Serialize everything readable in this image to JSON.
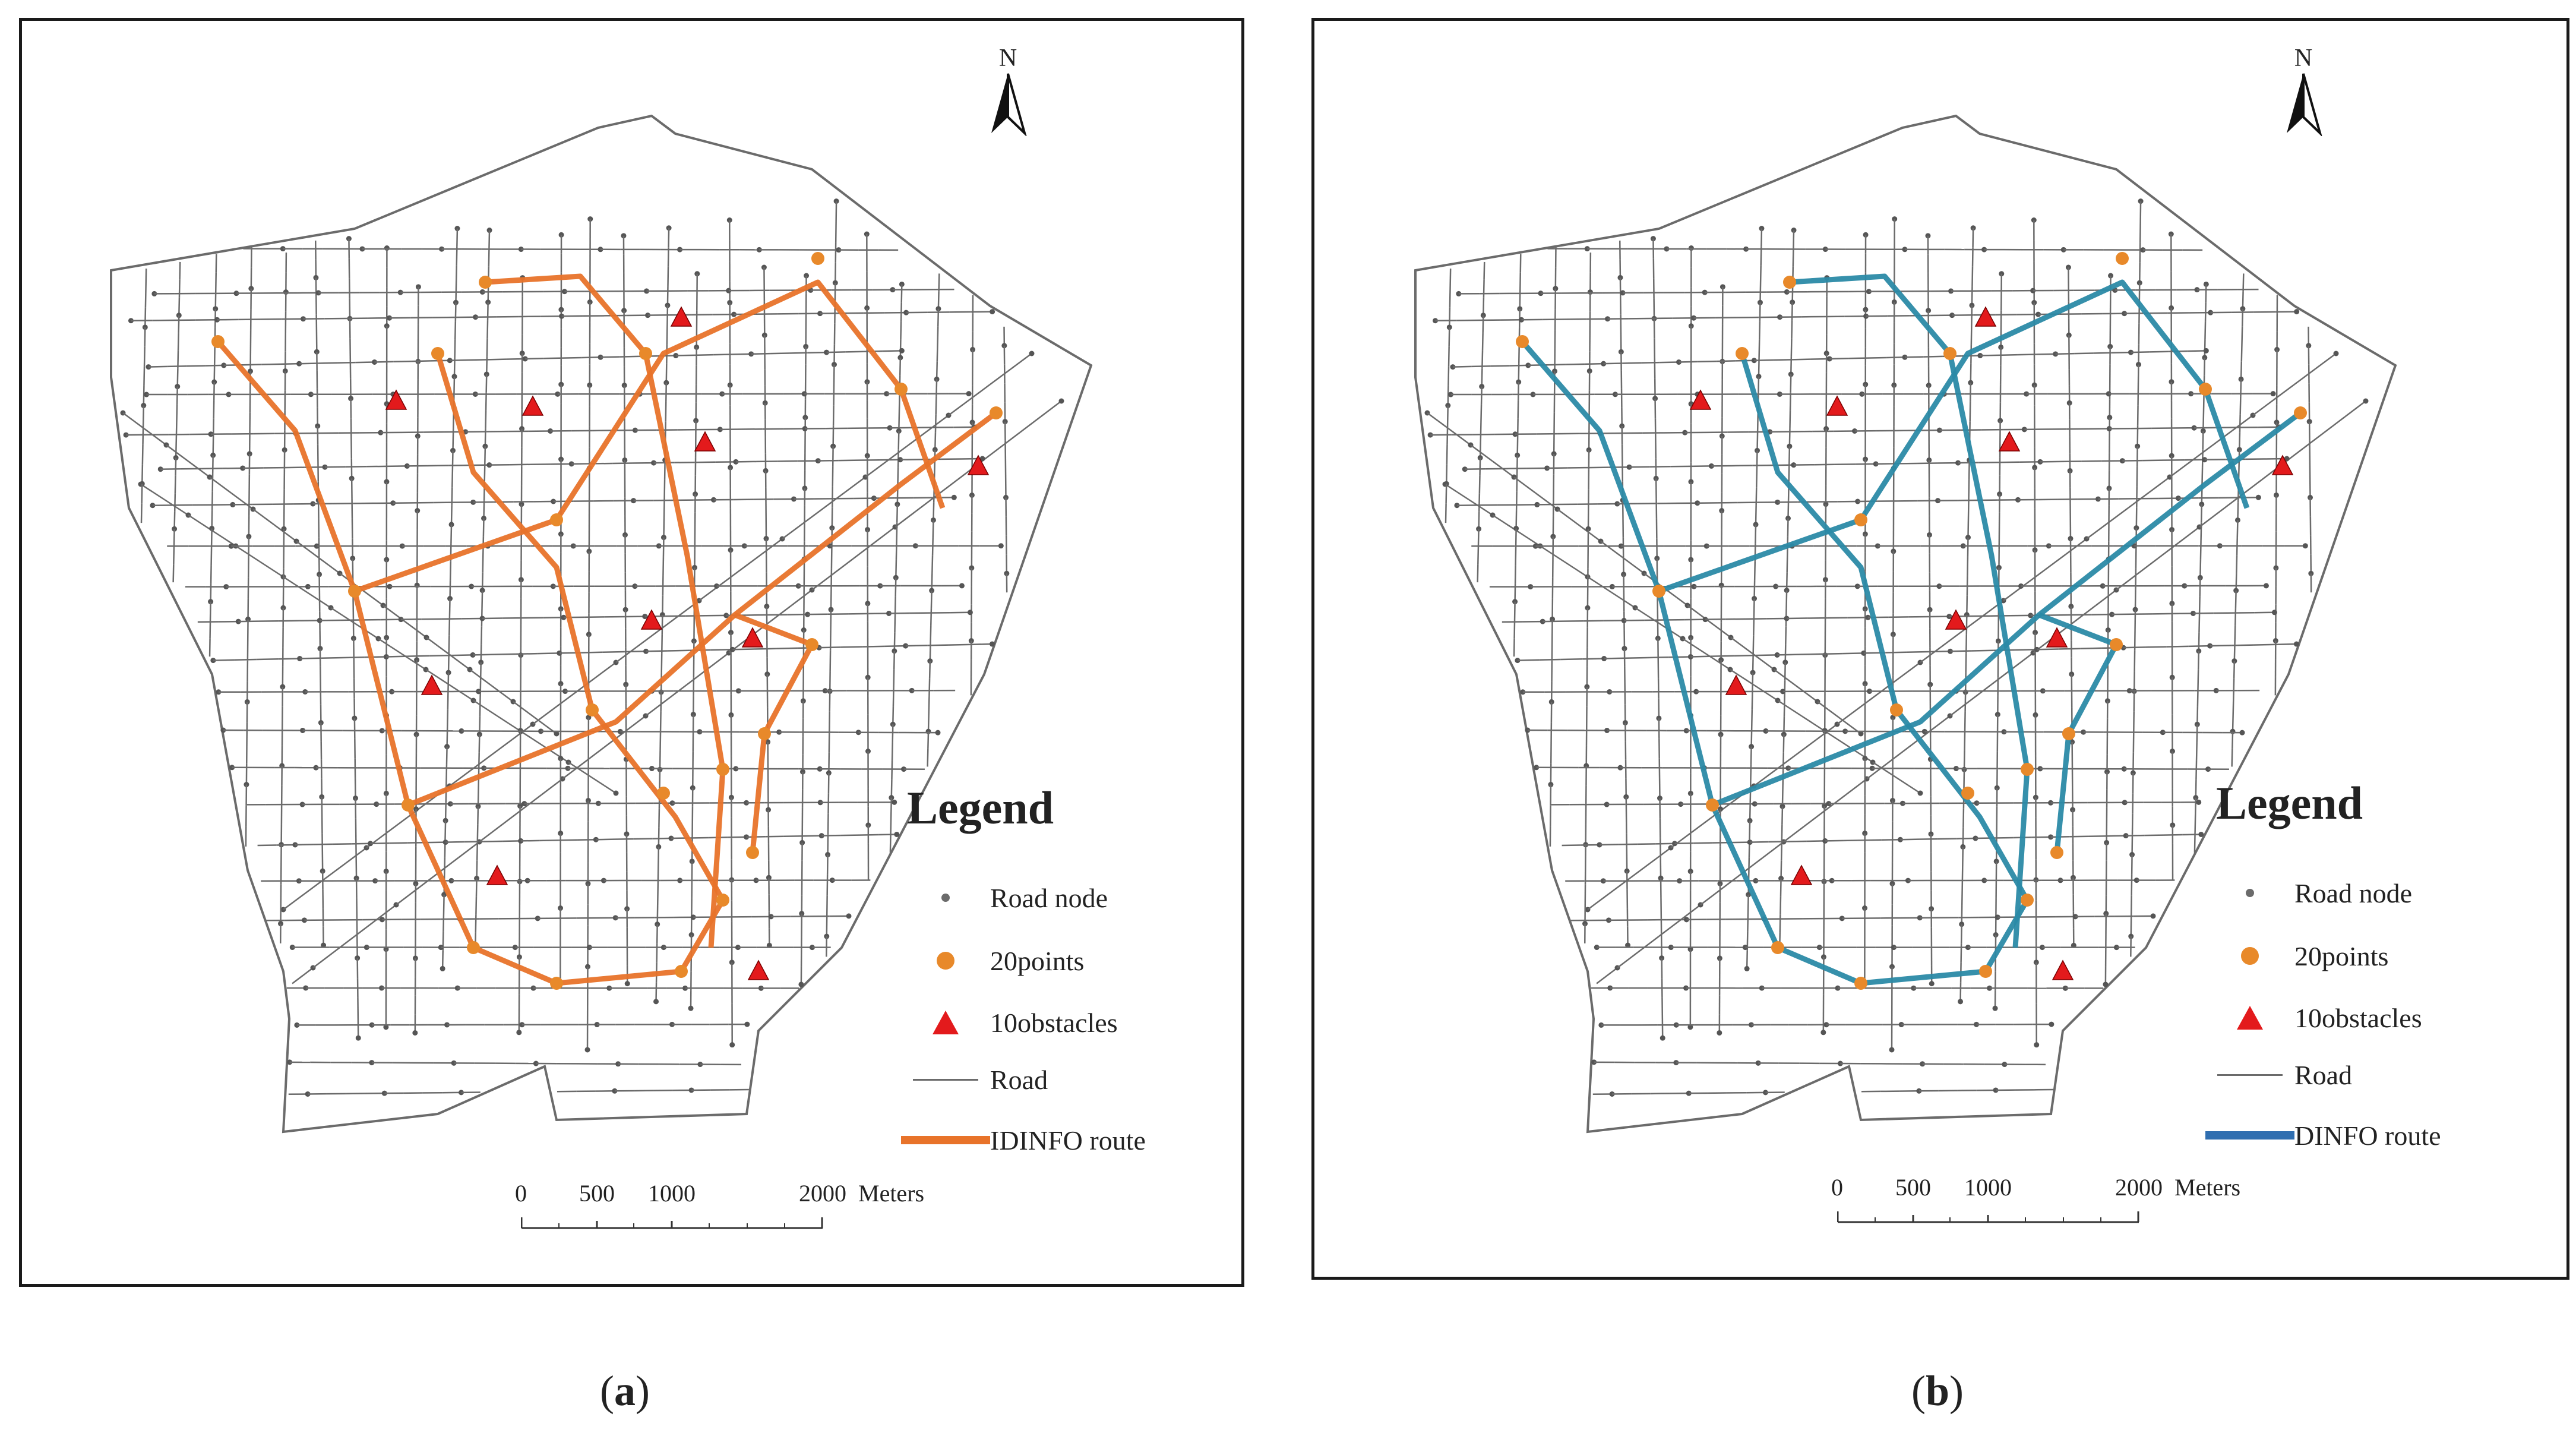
{
  "panels": [
    {
      "id": "a",
      "caption_letter": "a",
      "north": "N",
      "route_color": "#e8732a",
      "legend": {
        "title": "Legend",
        "items": [
          {
            "symbol": "node",
            "label": "Road node"
          },
          {
            "symbol": "point",
            "label": "20points"
          },
          {
            "symbol": "obstacle",
            "label": "10obstacles"
          },
          {
            "symbol": "road",
            "label": "Road"
          },
          {
            "symbol": "route",
            "label": "IDINFO route"
          }
        ]
      },
      "scale": {
        "ticks": [
          "0",
          "500",
          "1000",
          "2000"
        ],
        "units": "Meters"
      }
    },
    {
      "id": "b",
      "caption_letter": "b",
      "north": "N",
      "route_color": "#2b8aa6",
      "legend_route_color": "#2f6eb0",
      "legend": {
        "title": "Legend",
        "items": [
          {
            "symbol": "node",
            "label": "Road node"
          },
          {
            "symbol": "point",
            "label": "20points"
          },
          {
            "symbol": "obstacle",
            "label": "10obstacles"
          },
          {
            "symbol": "road",
            "label": "Road"
          },
          {
            "symbol": "route",
            "label": "DINFO route"
          }
        ]
      },
      "scale": {
        "ticks": [
          "0",
          "500",
          "1000",
          "2000"
        ],
        "units": "Meters"
      }
    }
  ],
  "colors": {
    "road": "#6b6b6b",
    "node": "#555555",
    "point": "#e8892a",
    "obstacle": "#e31a1c",
    "frame": "#1a1a1a"
  },
  "icons": {
    "north_arrow": "north-arrow-icon",
    "node": "gray-dot-icon",
    "point": "orange-circle-icon",
    "obstacle": "red-triangle-icon"
  }
}
